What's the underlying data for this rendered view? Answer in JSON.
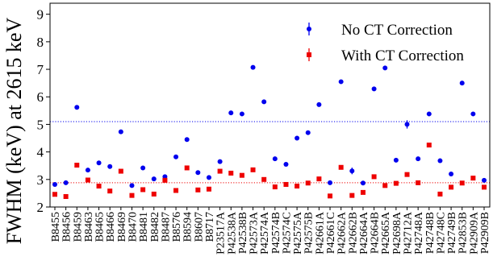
{
  "chart_data": {
    "type": "scatter",
    "title": "",
    "xlabel": "",
    "ylabel": "FWHM (keV) at 2615 keV",
    "ylim": [
      2,
      9.4
    ],
    "yticks": [
      2,
      3,
      4,
      5,
      6,
      7,
      8,
      9
    ],
    "grid": false,
    "legend_position": "top-right",
    "categories": [
      "B8455",
      "B8456",
      "B8459",
      "B8463",
      "B8465",
      "B8466",
      "B8469",
      "B8470",
      "B8481",
      "B8482",
      "B8487",
      "B8576",
      "B8594",
      "B8607",
      "B8717",
      "P23517A",
      "P42538A",
      "P42538B",
      "P42573A",
      "P42574A",
      "P42574B",
      "P42574C",
      "P42575A",
      "P42575B",
      "P42661A",
      "P42661C",
      "P42662A",
      "P42662B",
      "P42664A",
      "P42664B",
      "P42665A",
      "P42698A",
      "P42712A",
      "P42748A",
      "P42748B",
      "P42748C",
      "P42749B",
      "P42853B",
      "P42909A",
      "P42909B"
    ],
    "series": [
      {
        "name": "No CT Correction",
        "color": "#0000ee",
        "marker": "circle",
        "values": [
          2.82,
          2.88,
          5.62,
          3.34,
          3.6,
          3.47,
          4.73,
          2.78,
          3.42,
          3.02,
          3.1,
          3.82,
          4.45,
          3.25,
          3.07,
          3.65,
          5.42,
          5.38,
          7.07,
          5.82,
          3.75,
          3.55,
          4.5,
          4.7,
          5.72,
          2.88,
          6.55,
          3.31,
          2.87,
          6.29,
          7.05,
          3.7,
          5.0,
          3.75,
          5.38,
          3.68,
          3.2,
          6.5,
          5.38,
          2.97
        ],
        "err": [
          0,
          0,
          0,
          0,
          0,
          0,
          0,
          0,
          0,
          0,
          0,
          0,
          0,
          0,
          0,
          0,
          0,
          0,
          0,
          0,
          0,
          0,
          0,
          0,
          0,
          0,
          0,
          0.12,
          0,
          0,
          0,
          0,
          0.15,
          0,
          0,
          0,
          0,
          0,
          0,
          0
        ]
      },
      {
        "name": "With CT Correction",
        "color": "#ee0000",
        "marker": "square",
        "values": [
          2.46,
          2.38,
          3.52,
          2.98,
          2.76,
          2.58,
          3.3,
          2.42,
          2.63,
          2.47,
          2.97,
          2.6,
          3.42,
          2.62,
          2.65,
          3.3,
          3.23,
          3.15,
          3.35,
          3.0,
          2.73,
          2.82,
          2.76,
          2.87,
          3.02,
          2.4,
          3.44,
          2.42,
          2.53,
          3.1,
          2.78,
          2.86,
          3.18,
          2.88,
          4.25,
          2.47,
          2.72,
          2.87,
          3.05,
          2.72
        ]
      }
    ],
    "reference_lines": [
      {
        "y": 5.1,
        "color": "#0000ee",
        "style": "dotted"
      },
      {
        "y": 2.88,
        "color": "#ee0000",
        "style": "dotted"
      }
    ]
  }
}
